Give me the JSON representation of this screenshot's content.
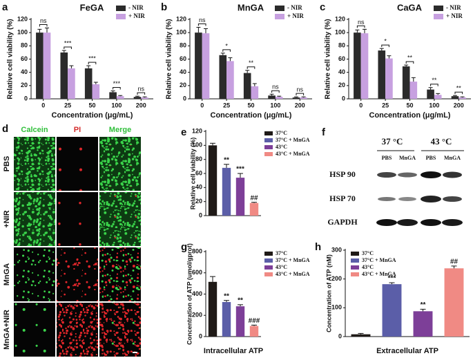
{
  "chart_data": [
    {
      "panel": "a",
      "type": "bar",
      "title": "FeGA",
      "categories": [
        "0",
        "25",
        "50",
        "100",
        "200"
      ],
      "x_label": "Concentration (μg/mL)",
      "y_label": "Relative cell viability (%)",
      "ylim": [
        0,
        120
      ],
      "yticks": [
        0,
        20,
        40,
        60,
        80,
        100,
        120
      ],
      "legend": "upper right",
      "series": [
        {
          "name": "- NIR",
          "color": "#2b2b2b",
          "values": [
            100,
            70,
            46,
            10,
            3
          ],
          "errors": [
            5,
            3,
            4,
            2,
            1
          ]
        },
        {
          "name": "+ NIR",
          "color": "#c7a0e0",
          "values": [
            100,
            46,
            22,
            4,
            2
          ],
          "errors": [
            7,
            4,
            3,
            1,
            1
          ]
        }
      ],
      "significance": [
        "ns",
        "***",
        "***",
        "***",
        "ns"
      ]
    },
    {
      "panel": "b",
      "type": "bar",
      "title": "MnGA",
      "categories": [
        "0",
        "25",
        "50",
        "100",
        "200"
      ],
      "x_label": "Concentration (μg/mL)",
      "y_label": "Relative cell viability (%)",
      "ylim": [
        0,
        120
      ],
      "yticks": [
        0,
        20,
        40,
        60,
        80,
        100,
        120
      ],
      "legend": "upper right",
      "series": [
        {
          "name": "- NIR",
          "color": "#2b2b2b",
          "values": [
            100,
            66,
            39,
            5,
            2
          ],
          "errors": [
            8,
            3,
            4,
            2,
            1
          ]
        },
        {
          "name": "+ NIR",
          "color": "#c7a0e0",
          "values": [
            99,
            57,
            19,
            3,
            2
          ],
          "errors": [
            7,
            5,
            4,
            1,
            1
          ]
        }
      ],
      "significance": [
        "ns",
        "*",
        "**",
        "ns",
        "ns"
      ]
    },
    {
      "panel": "c",
      "type": "bar",
      "title": "CaGA",
      "categories": [
        "0",
        "25",
        "50",
        "100",
        "200"
      ],
      "x_label": "Concentration (μg/mL)",
      "y_label": "Relative cell viability (%)",
      "ylim": [
        0,
        120
      ],
      "yticks": [
        0,
        20,
        40,
        60,
        80,
        100,
        120
      ],
      "legend": "upper right",
      "series": [
        {
          "name": "- NIR",
          "color": "#2b2b2b",
          "values": [
            100,
            73,
            49,
            14,
            4
          ],
          "errors": [
            4,
            3,
            2,
            3,
            1
          ]
        },
        {
          "name": "+ NIR",
          "color": "#c7a0e0",
          "values": [
            99,
            61,
            26,
            6,
            2
          ],
          "errors": [
            6,
            4,
            6,
            2,
            1
          ]
        }
      ],
      "significance": [
        "ns",
        "*",
        "**",
        "**",
        "**"
      ]
    },
    {
      "panel": "e",
      "type": "bar",
      "y_label": "Relative cell viability (%)",
      "categories": [
        "37°C",
        "37°C + MnGA",
        "43°C",
        "43°C + MnGA"
      ],
      "colors": [
        "#1f1a17",
        "#5b5ea8",
        "#7d3f98",
        "#f08a84"
      ],
      "values": [
        100,
        68,
        54,
        18
      ],
      "errors": [
        3,
        5,
        6,
        1
      ],
      "ylim": [
        0,
        120
      ],
      "yticks": [
        0,
        20,
        40,
        60,
        80,
        100,
        120
      ],
      "legend": "right",
      "significance": [
        null,
        "**",
        "***",
        "##"
      ]
    },
    {
      "panel": "g",
      "type": "bar",
      "x_label": "Intracellular ATP",
      "y_label": "Concentration of ATP (umol/gprot)",
      "categories": [
        "37°C",
        "37°C + MnGA",
        "43°C",
        "43°C + MnGA"
      ],
      "colors": [
        "#1f1a17",
        "#5b5ea8",
        "#7d3f98",
        "#f08a84"
      ],
      "values": [
        515,
        325,
        285,
        100
      ],
      "errors": [
        50,
        15,
        15,
        8
      ],
      "ylim": [
        0,
        800
      ],
      "yticks": [
        0,
        200,
        400,
        600,
        800
      ],
      "legend": "right",
      "significance": [
        null,
        "**",
        "**",
        "###"
      ]
    },
    {
      "panel": "h",
      "type": "bar",
      "x_label": "Extracellular ATP",
      "y_label": "Concentration of ATP (nM)",
      "categories": [
        "37°C",
        "37°C + MnGA",
        "43°C",
        "43°C + MnGA"
      ],
      "colors": [
        "#1f1a17",
        "#5b5ea8",
        "#7d3f98",
        "#f08a84"
      ],
      "values": [
        8,
        182,
        88,
        237
      ],
      "errors": [
        3,
        5,
        7,
        8
      ],
      "ylim": [
        0,
        300
      ],
      "yticks": [
        0,
        100,
        200,
        300
      ],
      "legend": "upper left",
      "significance": [
        null,
        "***",
        "**",
        "##"
      ]
    }
  ],
  "microscopy": {
    "panel": "d",
    "columns": [
      "Calcein",
      "PI",
      "Merge"
    ],
    "rows": [
      "PBS",
      "+NIR",
      "MnGA",
      "MnGA+NIR"
    ]
  },
  "western_blot": {
    "panel": "f",
    "groups": [
      "37 °C",
      "43 °C"
    ],
    "lanes": [
      "PBS",
      "MnGA",
      "PBS",
      "MnGA"
    ],
    "proteins": [
      "HSP 90",
      "HSP 70",
      "GAPDH"
    ]
  }
}
